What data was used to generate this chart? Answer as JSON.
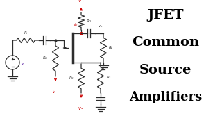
{
  "bg_color": "#ffffff",
  "title_lines": [
    "JFET",
    "Common",
    "Source",
    "Amplifiers"
  ],
  "title_color": "#000000",
  "circuit_color": "#2d2d2d",
  "red_color": "#cc0000",
  "purple_color": "#6633aa"
}
